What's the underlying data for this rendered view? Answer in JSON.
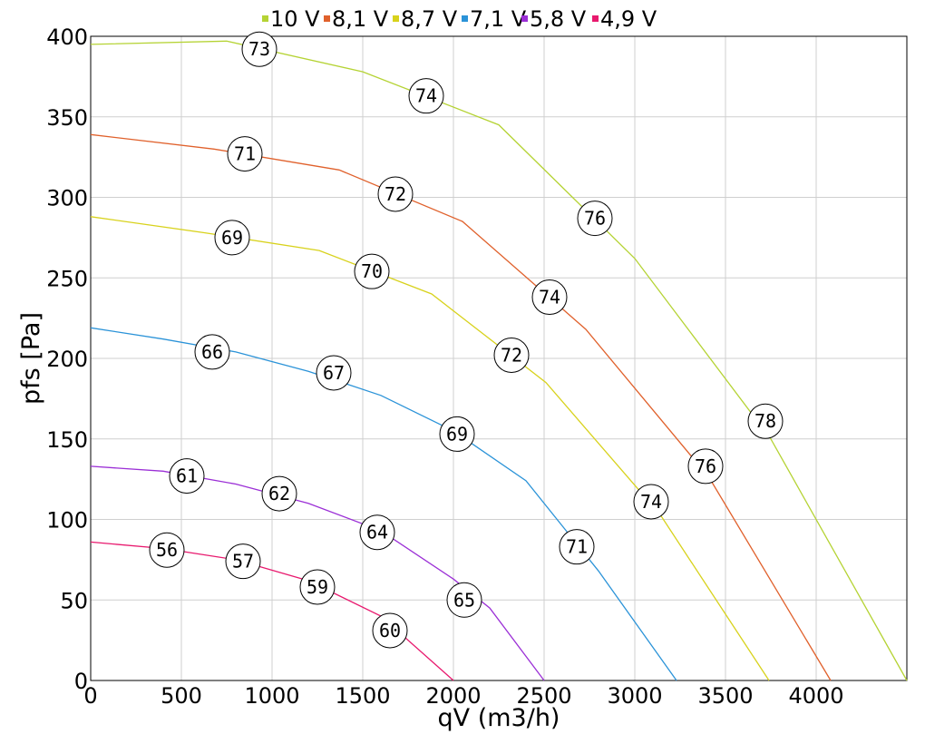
{
  "chart_data": {
    "type": "line",
    "xlabel": "qV (m3/h)",
    "ylabel": "pfs [Pa]",
    "xlim": [
      0,
      4500
    ],
    "ylim": [
      0,
      400
    ],
    "x_ticks": [
      0,
      500,
      1000,
      1500,
      2000,
      2500,
      3000,
      3500,
      4000
    ],
    "y_ticks": [
      0,
      50,
      100,
      150,
      200,
      250,
      300,
      350,
      400
    ],
    "grid": true,
    "legend_position": "top-center",
    "series": [
      {
        "name": "10 V",
        "color": "#b5d334",
        "points": [
          [
            0,
            395
          ],
          [
            750,
            397
          ],
          [
            1500,
            378
          ],
          [
            2250,
            345
          ],
          [
            3000,
            262
          ],
          [
            3750,
            150
          ],
          [
            4500,
            0
          ]
        ],
        "annotations": [
          {
            "x": 930,
            "y": 392,
            "label": "73"
          },
          {
            "x": 1850,
            "y": 363,
            "label": "74"
          },
          {
            "x": 2780,
            "y": 287,
            "label": "76"
          },
          {
            "x": 3720,
            "y": 161,
            "label": "78"
          }
        ]
      },
      {
        "name": "8,1 V",
        "color": "#e0612c",
        "points": [
          [
            0,
            339
          ],
          [
            680,
            330
          ],
          [
            1370,
            317
          ],
          [
            2050,
            285
          ],
          [
            2730,
            218
          ],
          [
            3410,
            126
          ],
          [
            4080,
            0
          ]
        ],
        "annotations": [
          {
            "x": 850,
            "y": 327,
            "label": "71"
          },
          {
            "x": 1680,
            "y": 302,
            "label": "72"
          },
          {
            "x": 2530,
            "y": 238,
            "label": "74"
          },
          {
            "x": 3390,
            "y": 133,
            "label": "76"
          }
        ]
      },
      {
        "name": "8,7 V",
        "color": "#d8d21c",
        "points": [
          [
            0,
            288
          ],
          [
            630,
            278
          ],
          [
            1260,
            267
          ],
          [
            1880,
            240
          ],
          [
            2510,
            185
          ],
          [
            3140,
            103
          ],
          [
            3740,
            0
          ]
        ],
        "annotations": [
          {
            "x": 780,
            "y": 275,
            "label": "69"
          },
          {
            "x": 1550,
            "y": 254,
            "label": "70"
          },
          {
            "x": 2320,
            "y": 202,
            "label": "72"
          },
          {
            "x": 3090,
            "y": 111,
            "label": "74"
          }
        ]
      },
      {
        "name": "7,1 V",
        "color": "#2b93d8",
        "points": [
          [
            0,
            219
          ],
          [
            400,
            212
          ],
          [
            800,
            204
          ],
          [
            1200,
            192
          ],
          [
            1600,
            177
          ],
          [
            2000,
            155
          ],
          [
            2400,
            124
          ],
          [
            2800,
            68
          ],
          [
            3230,
            0
          ]
        ],
        "annotations": [
          {
            "x": 670,
            "y": 204,
            "label": "66"
          },
          {
            "x": 1340,
            "y": 191,
            "label": "67"
          },
          {
            "x": 2020,
            "y": 153,
            "label": "69"
          },
          {
            "x": 2680,
            "y": 83,
            "label": "71"
          }
        ]
      },
      {
        "name": "5,8 V",
        "color": "#9b2fd6",
        "points": [
          [
            0,
            133
          ],
          [
            400,
            130
          ],
          [
            800,
            122
          ],
          [
            1200,
            110
          ],
          [
            1600,
            93
          ],
          [
            2000,
            63
          ],
          [
            2200,
            45
          ],
          [
            2500,
            0
          ]
        ],
        "annotations": [
          {
            "x": 530,
            "y": 127,
            "label": "61"
          },
          {
            "x": 1040,
            "y": 116,
            "label": "62"
          },
          {
            "x": 1580,
            "y": 92,
            "label": "64"
          },
          {
            "x": 2060,
            "y": 50,
            "label": "65"
          }
        ]
      },
      {
        "name": "4,9 V",
        "color": "#e8196e",
        "points": [
          [
            0,
            86
          ],
          [
            400,
            82
          ],
          [
            800,
            75
          ],
          [
            1200,
            62
          ],
          [
            1600,
            40
          ],
          [
            2000,
            0
          ]
        ],
        "annotations": [
          {
            "x": 420,
            "y": 81,
            "label": "56"
          },
          {
            "x": 840,
            "y": 74,
            "label": "57"
          },
          {
            "x": 1250,
            "y": 58,
            "label": "59"
          },
          {
            "x": 1650,
            "y": 31,
            "label": "60"
          }
        ]
      }
    ]
  }
}
